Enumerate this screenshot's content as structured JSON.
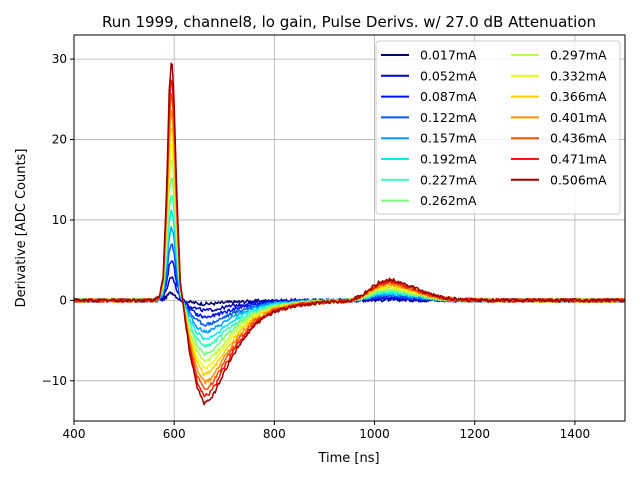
{
  "chart_data": {
    "type": "line",
    "title": "Run 1999, channel8, lo gain, Pulse Derivs. w/ 27.0 dB Attenuation",
    "xlabel": "Time [ns]",
    "ylabel": "Derivative [ADC Counts]",
    "xlim": [
      400,
      1500
    ],
    "ylim": [
      -15,
      33
    ],
    "x_ticks": [
      400,
      600,
      800,
      1000,
      1200,
      1400
    ],
    "y_ticks": [
      -10,
      0,
      10,
      20,
      30
    ],
    "x_tick_labels": [
      "400",
      "600",
      "800",
      "1000",
      "1200",
      "1400"
    ],
    "y_tick_labels": [
      "−10",
      "0",
      "10",
      "20",
      "30"
    ],
    "grid": true,
    "legend_position": "top-right",
    "legend_columns": 2,
    "pulse_shape": {
      "x": [
        400,
        560,
        570,
        578,
        585,
        590,
        595,
        600,
        605,
        612,
        620,
        630,
        645,
        660,
        670,
        685,
        700,
        730,
        760,
        800,
        850,
        900,
        950,
        975,
        990,
        1010,
        1030,
        1050,
        1080,
        1110,
        1140,
        1180,
        1250,
        1350,
        1500
      ],
      "relative_amplitude": [
        0,
        0,
        0.015,
        0.1,
        0.45,
        0.85,
        1.0,
        0.8,
        0.45,
        0.08,
        -0.05,
        -0.2,
        -0.35,
        -0.42,
        -0.41,
        -0.36,
        -0.29,
        -0.18,
        -0.1,
        -0.045,
        -0.02,
        -0.008,
        -0.002,
        0.02,
        0.045,
        0.075,
        0.085,
        0.075,
        0.05,
        0.025,
        0.01,
        0.002,
        0,
        0,
        0
      ]
    },
    "series": [
      {
        "name": "0.017mA",
        "color": "#00007f",
        "peak": 1.0
      },
      {
        "name": "0.052mA",
        "color": "#0000c8",
        "peak": 3.0
      },
      {
        "name": "0.087mA",
        "color": "#0010ff",
        "peak": 5.0
      },
      {
        "name": "0.122mA",
        "color": "#0058ff",
        "peak": 7.1
      },
      {
        "name": "0.157mA",
        "color": "#00a0ff",
        "peak": 9.3
      },
      {
        "name": "0.192mA",
        "color": "#08e6f0",
        "peak": 11.4
      },
      {
        "name": "0.227mA",
        "color": "#3affbd",
        "peak": 13.6
      },
      {
        "name": "0.262mA",
        "color": "#7aff7d",
        "peak": 15.8
      },
      {
        "name": "0.297mA",
        "color": "#b9ff3e",
        "peak": 18.0
      },
      {
        "name": "0.332mA",
        "color": "#eaff0d",
        "peak": 20.0
      },
      {
        "name": "0.366mA",
        "color": "#ffd000",
        "peak": 22.0
      },
      {
        "name": "0.401mA",
        "color": "#ff9000",
        "peak": 24.2
      },
      {
        "name": "0.436mA",
        "color": "#ff5000",
        "peak": 26.3
      },
      {
        "name": "0.471mA",
        "color": "#ff1400",
        "peak": 28.4
      },
      {
        "name": "0.506mA",
        "color": "#9a0000",
        "peak": 30.5
      }
    ]
  }
}
